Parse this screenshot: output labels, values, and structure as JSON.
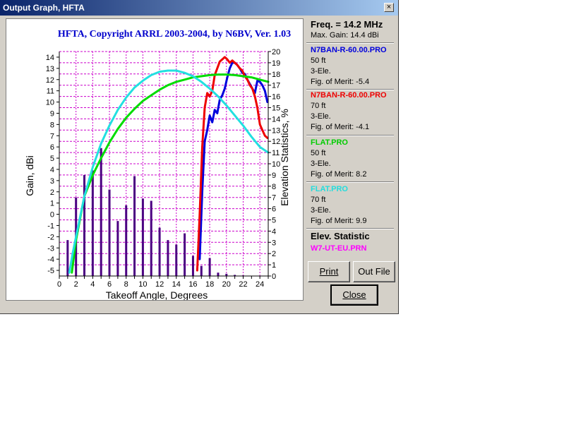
{
  "window": {
    "title": "Output Graph, HFTA",
    "close_glyph": "×"
  },
  "chart_data": {
    "type": "line",
    "title": "HFTA, Copyright ARRL 2003-2004, by N6BV, Ver. 1.03",
    "xlabel": "Takeoff Angle, Degrees",
    "ylabel": "Gain, dBi",
    "y2label": "Elevation Statistics, %",
    "xlim": [
      0,
      25
    ],
    "ylim": [
      -5.5,
      14.5
    ],
    "y2lim": [
      0,
      20
    ],
    "x_ticks": [
      0,
      2,
      4,
      6,
      8,
      10,
      12,
      14,
      16,
      18,
      20,
      22,
      24
    ],
    "y_ticks": [
      -5,
      -4,
      -3,
      -2,
      -1,
      0,
      1,
      2,
      3,
      4,
      5,
      6,
      7,
      8,
      9,
      10,
      11,
      12,
      13,
      14
    ],
    "y2_ticks": [
      0,
      1,
      2,
      3,
      4,
      5,
      6,
      7,
      8,
      9,
      10,
      11,
      12,
      13,
      14,
      15,
      16,
      17,
      18,
      19,
      20
    ],
    "grid": true,
    "series": [
      {
        "name": "N7BAN-R-60.00.PRO",
        "color": "#0000dd",
        "x": [
          16.8,
          17.1,
          17.4,
          17.7,
          18.0,
          18.3,
          18.6,
          18.9,
          19.2,
          19.5,
          19.8,
          20.1,
          20.4,
          20.7,
          21.0,
          21.3,
          21.6,
          21.9,
          22.2,
          22.5,
          22.8,
          23.1,
          23.4,
          23.7,
          24.0,
          24.3,
          24.6,
          24.9
        ],
        "y": [
          -4,
          2,
          6.5,
          7.5,
          8.8,
          8.2,
          9.3,
          9.0,
          10.2,
          10.6,
          11.2,
          12.2,
          13.0,
          13.5,
          13.5,
          13.3,
          13.0,
          12.6,
          12.5,
          12.0,
          11.6,
          11.2,
          10.8,
          11.9,
          11.8,
          11.5,
          11.0,
          10.0
        ]
      },
      {
        "name": "N7BAN-R-60.00.PRO",
        "color": "#ee0000",
        "x": [
          16.5,
          16.8,
          17.1,
          17.4,
          17.7,
          18.0,
          18.3,
          18.6,
          18.9,
          19.2,
          19.5,
          19.8,
          20.1,
          20.4,
          20.7,
          21.0,
          21.3,
          21.6,
          21.9,
          22.2,
          22.5,
          22.8,
          23.1,
          23.4,
          23.7,
          24.0,
          24.3,
          24.6,
          24.9
        ],
        "y": [
          -5,
          0,
          6,
          9.5,
          10.8,
          10.5,
          11.0,
          12.4,
          13.0,
          13.6,
          13.8,
          14.0,
          13.8,
          13.5,
          13.7,
          13.5,
          13.3,
          13.0,
          12.8,
          12.3,
          12.0,
          11.5,
          11.2,
          10.5,
          9.5,
          8.0,
          7.5,
          7.0,
          6.8
        ]
      },
      {
        "name": "FLAT.PRO",
        "color": "#00dd00",
        "x": [
          1.5,
          2,
          3,
          4,
          5,
          6,
          7,
          8,
          9,
          10,
          11,
          12,
          13,
          14,
          15,
          16,
          17,
          18,
          19,
          20,
          21,
          22,
          23,
          24,
          25
        ],
        "y": [
          -5.2,
          -2.3,
          1.6,
          3.5,
          5.0,
          6.4,
          7.6,
          8.6,
          9.4,
          10.1,
          10.6,
          11.1,
          11.5,
          11.8,
          12.0,
          12.2,
          12.3,
          12.4,
          12.45,
          12.45,
          12.4,
          12.3,
          12.2,
          12.0,
          11.8
        ]
      },
      {
        "name": "FLAT.PRO",
        "color": "#22e0e0",
        "x": [
          1.2,
          1.6,
          2,
          3,
          4,
          5,
          6,
          7,
          8,
          9,
          10,
          11,
          12,
          13,
          14,
          15,
          16,
          17,
          18,
          19,
          20,
          21,
          22,
          23,
          24,
          25
        ],
        "y": [
          -5.2,
          -3.5,
          -2,
          1.6,
          4.2,
          6.3,
          7.9,
          9.3,
          10.4,
          11.3,
          11.9,
          12.4,
          12.7,
          12.8,
          12.8,
          12.6,
          12.3,
          11.8,
          11.2,
          10.5,
          9.7,
          8.8,
          7.9,
          6.9,
          6.0,
          5.5
        ]
      }
    ],
    "bars": {
      "name": "W7-UT-EU.PRN",
      "color": "#4b0082",
      "x": [
        1,
        2,
        3,
        4,
        5,
        6,
        7,
        8,
        9,
        10,
        11,
        12,
        13,
        14,
        15,
        16,
        17,
        18,
        19,
        20,
        21,
        22
      ],
      "values": [
        3.2,
        7.0,
        9.0,
        9.4,
        11.4,
        7.7,
        4.9,
        6.3,
        8.9,
        6.9,
        6.7,
        4.3,
        3.2,
        2.8,
        3.8,
        1.8,
        0.9,
        1.6,
        0.3,
        0.2,
        0.1,
        0.05
      ]
    }
  },
  "panel": {
    "freq": "Freq. = 14.2 MHz",
    "max_gain": "Max. Gain: 14.4 dBi",
    "entries": [
      {
        "name": "N7BAN-R-60.00.PRO",
        "color": "#0000dd",
        "height": "50 ft",
        "elements": "3-Ele.",
        "merit": "Fig. of Merit: -5.4"
      },
      {
        "name": "N7BAN-R-60.00.PRO",
        "color": "#ee0000",
        "height": "70 ft",
        "elements": "3-Ele.",
        "merit": "Fig. of Merit: -4.1"
      },
      {
        "name": "FLAT.PRO",
        "color": "#00cc00",
        "height": "50 ft",
        "elements": "3-Ele.",
        "merit": "Fig. of Merit:  8.2"
      },
      {
        "name": "FLAT.PRO",
        "color": "#22dddd",
        "height": "70 ft",
        "elements": "3-Ele.",
        "merit": "Fig. of Merit:  9.9"
      }
    ],
    "elev_title": "Elev. Statistic",
    "elev_file": "W7-UT-EU.PRN",
    "elev_color": "#ff00ff"
  },
  "buttons": {
    "print": "Print",
    "outfile": "Out File",
    "close": "Close"
  }
}
